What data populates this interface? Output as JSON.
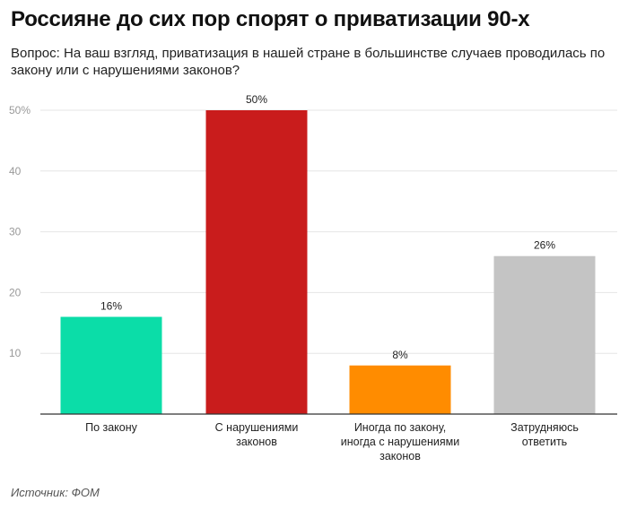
{
  "title": "Россияне до сих пор спорят о приватизации 90-х",
  "subtitle": "Вопрос: На ваш взгляд, приватизация в нашей стране в большинстве случаев проводилась по закону или с нарушениями законов?",
  "source": "Источник: ФОМ",
  "chart_data": {
    "type": "bar",
    "categories": [
      [
        "По закону"
      ],
      [
        "С нарушениями",
        "законов"
      ],
      [
        "Иногда по закону,",
        "иногда с нарушениями",
        "законов"
      ],
      [
        "Затрудняюсь",
        "ответить"
      ]
    ],
    "values": [
      16,
      50,
      8,
      26
    ],
    "value_labels": [
      "16%",
      "50%",
      "8%",
      "26%"
    ],
    "colors": [
      "#0BDDA8",
      "#C91C1C",
      "#FF8C00",
      "#C4C4C4"
    ],
    "y_ticks": [
      10,
      20,
      30,
      40,
      50
    ],
    "y_tick_labels": [
      "10",
      "20",
      "30",
      "40",
      "50%"
    ],
    "ylim": [
      0,
      50
    ],
    "grid": true,
    "xlabel": "",
    "ylabel": ""
  }
}
